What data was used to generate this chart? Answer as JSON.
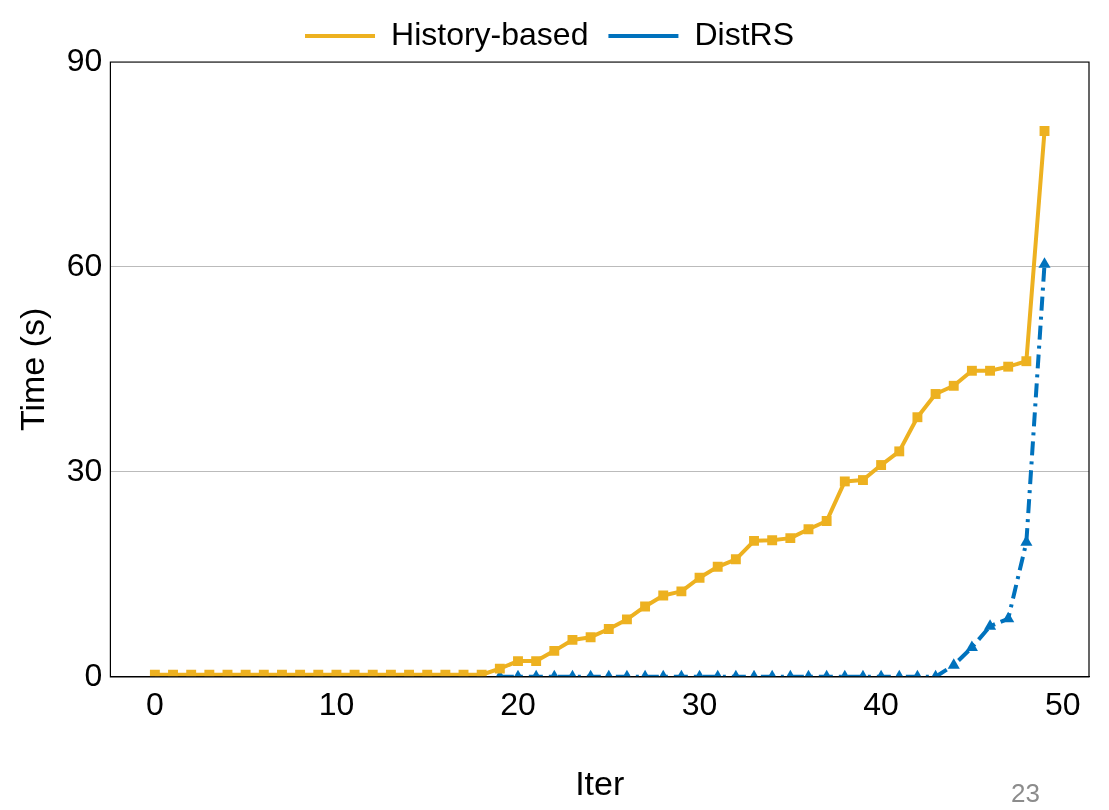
{
  "chart_data": {
    "type": "line",
    "xlabel": "Iter",
    "ylabel": "Time (s)",
    "annotations": [
      "23"
    ],
    "x": [
      0,
      1,
      2,
      3,
      4,
      5,
      6,
      7,
      8,
      9,
      10,
      11,
      12,
      13,
      14,
      15,
      16,
      17,
      18,
      19,
      20,
      21,
      22,
      23,
      24,
      25,
      26,
      27,
      28,
      29,
      30,
      31,
      32,
      33,
      34,
      35,
      36,
      37,
      38,
      39,
      40,
      41,
      42,
      43,
      44,
      45,
      46,
      47,
      48,
      49
    ],
    "series": [
      {
        "name": "History-based",
        "color": "#edb120",
        "marker": "square",
        "line_style": "solid",
        "values": [
          0.3,
          0.3,
          0.3,
          0.3,
          0.3,
          0.3,
          0.3,
          0.3,
          0.3,
          0.3,
          0.3,
          0.3,
          0.3,
          0.3,
          0.3,
          0.3,
          0.3,
          0.3,
          0.3,
          1.2,
          2.3,
          2.3,
          3.8,
          5.4,
          5.8,
          7,
          8.4,
          10.3,
          11.9,
          12.5,
          14.5,
          16.1,
          17.2,
          19.9,
          20,
          20.3,
          21.6,
          22.8,
          28.6,
          28.8,
          31,
          33,
          38,
          41.4,
          42.6,
          44.8,
          44.8,
          45.4,
          46.2,
          79.9
        ]
      },
      {
        "name": "DistRS",
        "color": "#0072bd",
        "marker": "triangle",
        "line_style": "dashdot",
        "values": [
          null,
          null,
          null,
          null,
          null,
          null,
          null,
          null,
          null,
          null,
          null,
          null,
          null,
          null,
          null,
          null,
          null,
          null,
          null,
          0,
          0,
          0,
          0,
          0,
          0,
          0,
          0,
          0,
          0,
          0,
          0,
          0,
          0,
          0,
          0,
          0,
          0,
          0,
          0,
          0,
          0,
          0,
          0,
          0,
          1.7,
          4.3,
          7.4,
          8.5,
          19.7,
          60.4
        ]
      }
    ],
    "xlim": [
      -2.45,
      51.45
    ],
    "xticks": [
      0,
      10,
      20,
      30,
      40,
      50
    ],
    "ylim": [
      0,
      90
    ],
    "yticks": [
      0,
      30,
      60,
      90
    ],
    "grid": "y",
    "legend": "top"
  }
}
